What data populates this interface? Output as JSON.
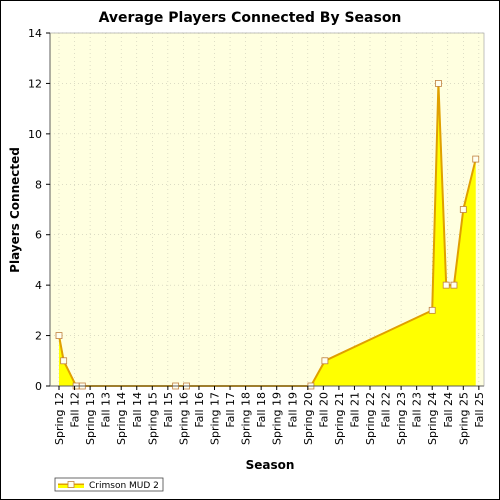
{
  "chart_data": {
    "type": "area",
    "title": "Average Players Connected By Season",
    "xlabel": "Season",
    "ylabel": "Players Connected",
    "ylim": [
      0,
      14
    ],
    "yticks": [
      0,
      2,
      4,
      6,
      8,
      10,
      12,
      14
    ],
    "grid": true,
    "legend_position": "bottom-left",
    "season_labels": [
      "Spring 12",
      "Fall 12",
      "Spring 13",
      "Fall 13",
      "Spring 14",
      "Fall 14",
      "Spring 15",
      "Fall 15",
      "Spring 16",
      "Fall 16",
      "Spring 17",
      "Fall 17",
      "Spring 18",
      "Fall 18",
      "Spring 19",
      "Fall 19",
      "Spring 20",
      "Fall 20",
      "Spring 21",
      "Fall 21",
      "Spring 22",
      "Fall 22",
      "Spring 23",
      "Fall 23",
      "Spring 24",
      "Fall 24",
      "Spring 25",
      "Fall 25"
    ],
    "series": [
      {
        "name": "Crimson MUD 2",
        "fill_color": "#ffff00",
        "line_color": "#e0a000",
        "points": [
          {
            "x": 12.0,
            "y": 2
          },
          {
            "x": 12.15,
            "y": 1
          },
          {
            "x": 12.55,
            "y": 0
          },
          {
            "x": 12.75,
            "y": 0
          },
          {
            "x": 15.75,
            "y": 0
          },
          {
            "x": 16.1,
            "y": 0
          },
          {
            "x": 20.1,
            "y": 0
          },
          {
            "x": 20.55,
            "y": 1
          },
          {
            "x": 24.0,
            "y": 3
          },
          {
            "x": 24.2,
            "y": 12
          },
          {
            "x": 24.45,
            "y": 4
          },
          {
            "x": 24.7,
            "y": 4
          },
          {
            "x": 25.0,
            "y": 7
          },
          {
            "x": 25.4,
            "y": 9
          }
        ]
      }
    ]
  }
}
